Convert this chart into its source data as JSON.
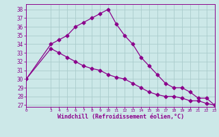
{
  "line1_x": [
    0,
    3,
    4,
    5,
    6,
    7,
    8,
    9,
    10,
    11,
    12,
    13,
    14,
    15,
    16,
    17,
    18,
    19,
    20,
    21,
    22,
    23
  ],
  "line1_y": [
    30,
    34,
    34.5,
    35,
    36,
    36.5,
    37,
    37.5,
    38,
    36.3,
    35,
    34,
    32.5,
    31.5,
    30.5,
    29.5,
    29,
    29,
    28.5,
    27.8,
    27.8,
    27
  ],
  "line2_x": [
    0,
    3,
    4,
    5,
    6,
    7,
    8,
    9,
    10,
    11,
    12,
    13,
    14,
    15,
    16,
    17,
    18,
    19,
    20,
    21,
    22,
    23
  ],
  "line2_y": [
    30,
    33.5,
    33,
    32.5,
    32,
    31.5,
    31.2,
    31,
    30.5,
    30.2,
    30,
    29.5,
    29,
    28.5,
    28.2,
    28,
    28,
    27.8,
    27.5,
    27.5,
    27.2,
    27
  ],
  "line_color": "#8B008B",
  "bg_color": "#cce8e8",
  "grid_color": "#aacccc",
  "xlabel": "Windchill (Refroidissement éolien,°C)",
  "yticks": [
    27,
    28,
    29,
    30,
    31,
    32,
    33,
    34,
    35,
    36,
    37,
    38
  ],
  "xticks": [
    0,
    3,
    4,
    5,
    6,
    7,
    8,
    9,
    10,
    11,
    12,
    13,
    14,
    15,
    16,
    17,
    18,
    19,
    20,
    21,
    22,
    23
  ],
  "xlim": [
    0,
    23
  ],
  "ylim": [
    26.8,
    38.6
  ]
}
